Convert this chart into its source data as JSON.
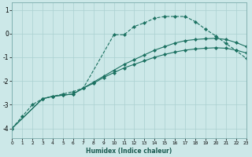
{
  "xlabel": "Humidex (Indice chaleur)",
  "bg_color": "#cce8e8",
  "grid_color": "#aad0d0",
  "line_color": "#1a7060",
  "line1_dashed": {
    "x": [
      0,
      1,
      2,
      3,
      4,
      5,
      6,
      7,
      10,
      11,
      12,
      13,
      14,
      15,
      16,
      17,
      18,
      19,
      20,
      21,
      22,
      23
    ],
    "y": [
      -4.0,
      -3.5,
      -3.0,
      -2.75,
      -2.65,
      -2.55,
      -2.45,
      -2.3,
      -0.05,
      -0.05,
      0.3,
      0.45,
      0.65,
      0.72,
      0.72,
      0.72,
      0.5,
      0.18,
      -0.1,
      -0.42,
      -0.72,
      -1.05
    ]
  },
  "line2_solid": {
    "x": [
      0,
      3,
      4,
      5,
      6,
      7,
      8,
      9,
      10,
      11,
      12,
      13,
      14,
      15,
      16,
      17,
      18,
      19,
      20,
      21,
      22,
      23
    ],
    "y": [
      -4.0,
      -2.75,
      -2.65,
      -2.6,
      -2.55,
      -2.3,
      -2.05,
      -1.8,
      -1.55,
      -1.3,
      -1.1,
      -0.9,
      -0.7,
      -0.55,
      -0.4,
      -0.3,
      -0.25,
      -0.22,
      -0.2,
      -0.25,
      -0.38,
      -0.55
    ]
  },
  "line3_solid": {
    "x": [
      0,
      3,
      4,
      5,
      6,
      7,
      8,
      9,
      10,
      11,
      12,
      13,
      14,
      15,
      16,
      17,
      18,
      19,
      20,
      21,
      22,
      23
    ],
    "y": [
      -4.0,
      -2.75,
      -2.65,
      -2.6,
      -2.55,
      -2.3,
      -2.1,
      -1.85,
      -1.65,
      -1.45,
      -1.3,
      -1.15,
      -1.0,
      -0.88,
      -0.78,
      -0.7,
      -0.65,
      -0.62,
      -0.6,
      -0.62,
      -0.7,
      -0.82
    ]
  },
  "xlim": [
    0,
    23
  ],
  "ylim": [
    -4.4,
    1.3
  ],
  "yticks": [
    -4,
    -3,
    -2,
    -1,
    0,
    1
  ],
  "xticks": [
    0,
    1,
    2,
    3,
    4,
    5,
    6,
    7,
    8,
    9,
    10,
    11,
    12,
    13,
    14,
    15,
    16,
    17,
    18,
    19,
    20,
    21,
    22,
    23
  ],
  "figw": 3.2,
  "figh": 2.0,
  "dpi": 100
}
